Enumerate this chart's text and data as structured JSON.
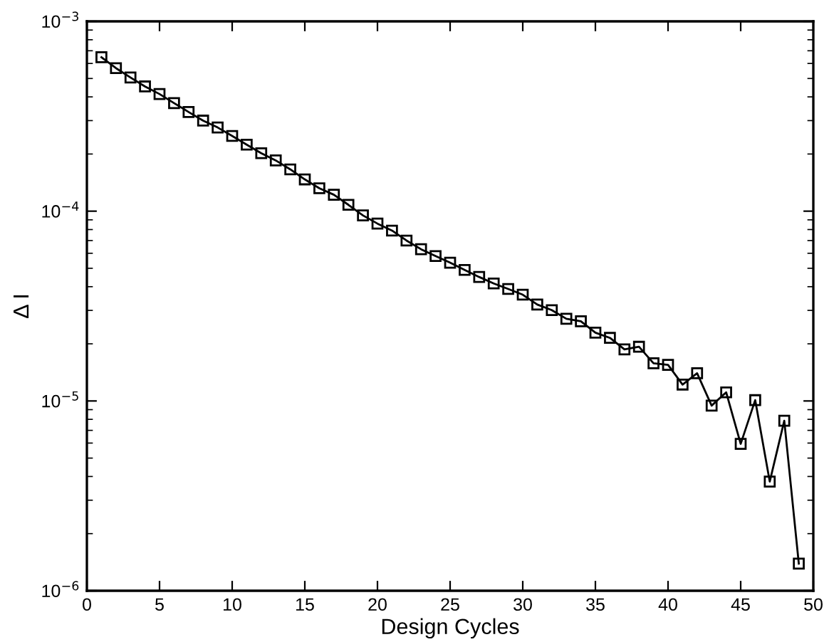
{
  "chart_data": {
    "type": "line",
    "xlabel": "Design Cycles",
    "ylabel": "Δ I",
    "log": "y",
    "marker": "square",
    "line_style": "solid",
    "grid": false,
    "legend": false,
    "x": [
      1,
      2,
      3,
      4,
      5,
      6,
      7,
      8,
      9,
      10,
      11,
      12,
      13,
      14,
      15,
      16,
      17,
      18,
      19,
      20,
      21,
      22,
      23,
      24,
      25,
      26,
      27,
      28,
      29,
      30,
      31,
      32,
      33,
      34,
      35,
      36,
      37,
      38,
      39,
      40,
      41,
      42,
      43,
      44,
      45,
      46,
      47,
      48,
      49
    ],
    "series": [
      {
        "color": "#000000",
        "values": [
          0.000647,
          0.000567,
          0.000506,
          0.000454,
          0.000414,
          0.000371,
          0.000333,
          0.0003,
          0.000276,
          0.000249,
          0.000224,
          0.000202,
          0.000185,
          0.000166,
          0.000147,
          0.000132,
          0.000122,
          0.000108,
          9.5e-05,
          8.6e-05,
          7.9e-05,
          7e-05,
          6.3e-05,
          5.8e-05,
          5.35e-05,
          4.9e-05,
          4.5e-05,
          4.16e-05,
          3.89e-05,
          3.63e-05,
          3.22e-05,
          3.01e-05,
          2.71e-05,
          2.63e-05,
          2.29e-05,
          2.15e-05,
          1.87e-05,
          1.93e-05,
          1.58e-05,
          1.55e-05,
          1.22e-05,
          1.4e-05,
          9.45e-06,
          1.11e-05,
          5.94e-06,
          1.01e-05,
          3.76e-06,
          7.87e-06,
          1.39e-06
        ]
      }
    ],
    "xlim": [
      0,
      50
    ],
    "xticks": [
      0,
      5,
      10,
      15,
      20,
      25,
      30,
      35,
      40,
      45,
      50
    ],
    "ylim": [
      1e-06,
      0.001
    ],
    "yticks": [
      {
        "value": 1e-06,
        "label": "10$^{−6}$"
      },
      {
        "value": 1e-05,
        "label": "10$^{−5}$"
      },
      {
        "value": 0.0001,
        "label": "10$^{−4}$"
      },
      {
        "value": 0.001,
        "label": "10$^{−3}$"
      }
    ]
  }
}
